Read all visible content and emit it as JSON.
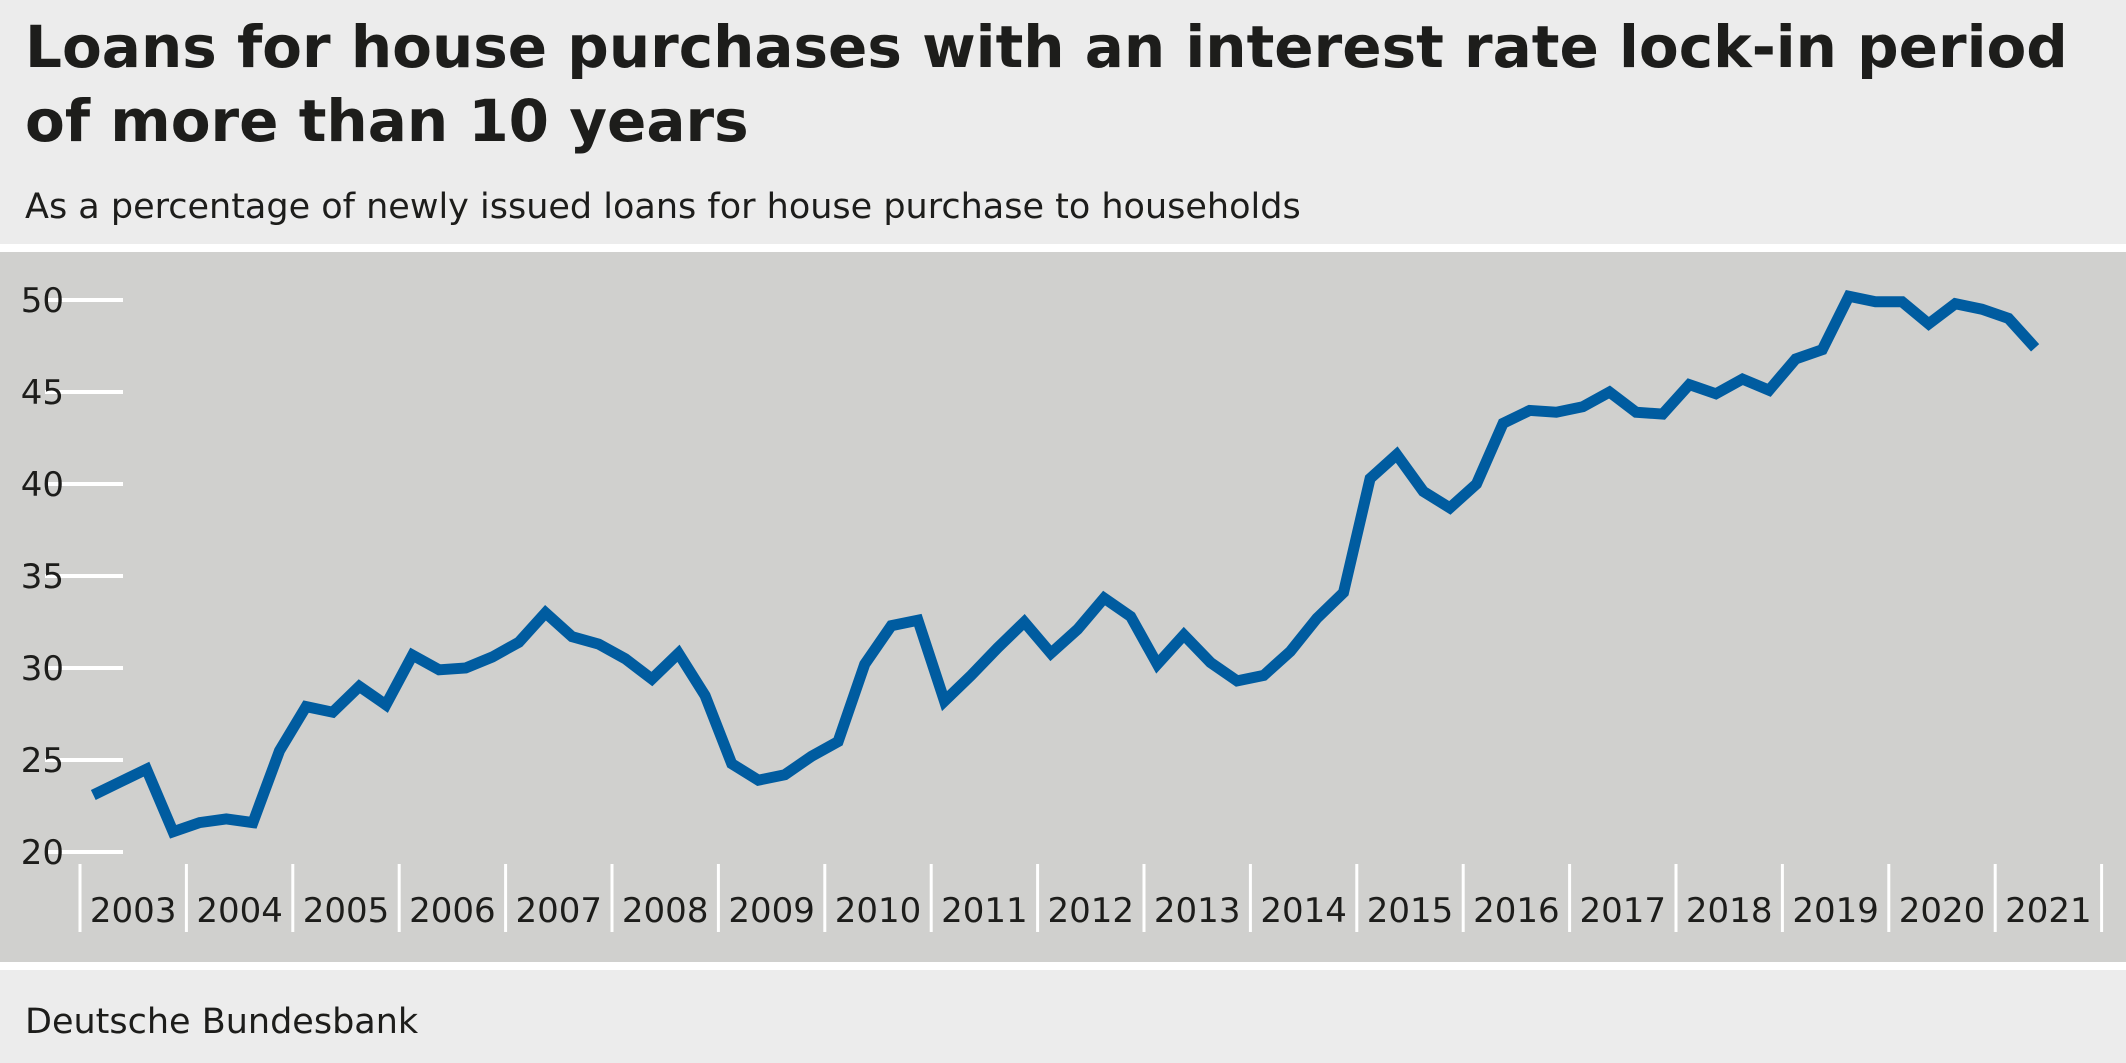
{
  "chart_data": {
    "type": "line",
    "title": "Loans for house purchases with an interest rate lock-in period of more than 10 years",
    "subtitle": "As a percentage of newly issued loans for house purchase to households",
    "source": "Deutsche Bundesbank",
    "ylim": [
      20,
      50
    ],
    "yticks": [
      20,
      25,
      30,
      35,
      40,
      45,
      50
    ],
    "xlabels": [
      "2003",
      "2004",
      "2005",
      "2006",
      "2007",
      "2008",
      "2009",
      "2010",
      "2011",
      "2012",
      "2013",
      "2014",
      "2015",
      "2016",
      "2017",
      "2018",
      "2019",
      "2020",
      "2021"
    ],
    "x_start": "2003 Q1",
    "grid": false,
    "color": "#005ca0",
    "series": [
      {
        "values": [
          23.1,
          23.8,
          24.5,
          21.1,
          21.6,
          21.8,
          21.6,
          25.5,
          27.9,
          27.6,
          29.0,
          28.0,
          30.7,
          29.9,
          30.0,
          30.6,
          31.4,
          33.0,
          31.7,
          31.3,
          30.5,
          29.4,
          30.8,
          28.5,
          24.8,
          23.9,
          24.2,
          25.2,
          26.0,
          30.2,
          32.3,
          32.6,
          28.2,
          29.6,
          31.1,
          32.5,
          30.8,
          32.1,
          33.8,
          32.8,
          30.2,
          31.8,
          30.3,
          29.3,
          29.6,
          30.9,
          32.7,
          34.1,
          40.3,
          41.6,
          39.6,
          38.7,
          40.0,
          43.3,
          44.0,
          43.9,
          44.2,
          45.0,
          43.9,
          43.8,
          45.4,
          44.9,
          45.7,
          45.1,
          46.8,
          47.3,
          50.2,
          49.9,
          49.9,
          48.7,
          49.8,
          49.5,
          49.0,
          47.4
        ]
      }
    ]
  }
}
